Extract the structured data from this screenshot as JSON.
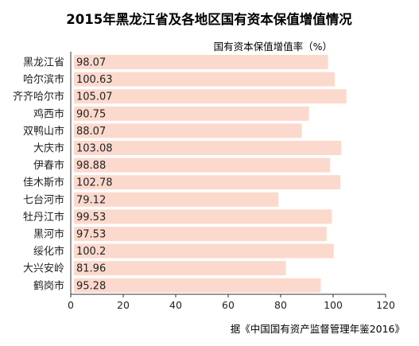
{
  "chart_data": {
    "type": "bar",
    "orientation": "horizontal",
    "title": "2015年黑龙江省及各地区国有资本保值增值情况",
    "unit_label": "国有资本保值增值率（%）",
    "source": "据《中国国有资产监督管理年鉴2016》",
    "categories": [
      "黑龙江省",
      "哈尔滨市",
      "齐齐哈尔市",
      "鸡西市",
      "双鸭山市",
      "大庆市",
      "伊春市",
      "佳木斯市",
      "七台河市",
      "牡丹江市",
      "黑河市",
      "绥化市",
      "大兴安岭",
      "鹤岗市"
    ],
    "values": [
      98.07,
      100.63,
      105.07,
      90.75,
      88.07,
      103.08,
      98.88,
      102.78,
      79.12,
      99.53,
      97.53,
      100.2,
      81.96,
      95.28
    ],
    "value_labels": [
      "98.07",
      "100.63",
      "105.07",
      "90.75",
      "88.07",
      "103.08",
      "98.88",
      "102.78",
      "79.12",
      "99.53",
      "97.53",
      "100.2",
      "81.96",
      "95.28"
    ],
    "xlim": [
      0,
      120
    ],
    "x_ticks": [
      "0",
      "20",
      "40",
      "60",
      "80",
      "100",
      "120"
    ],
    "grid": false,
    "colors": {
      "bar": "#fcd9cd",
      "axis": "#333333",
      "text": "#222222"
    }
  }
}
